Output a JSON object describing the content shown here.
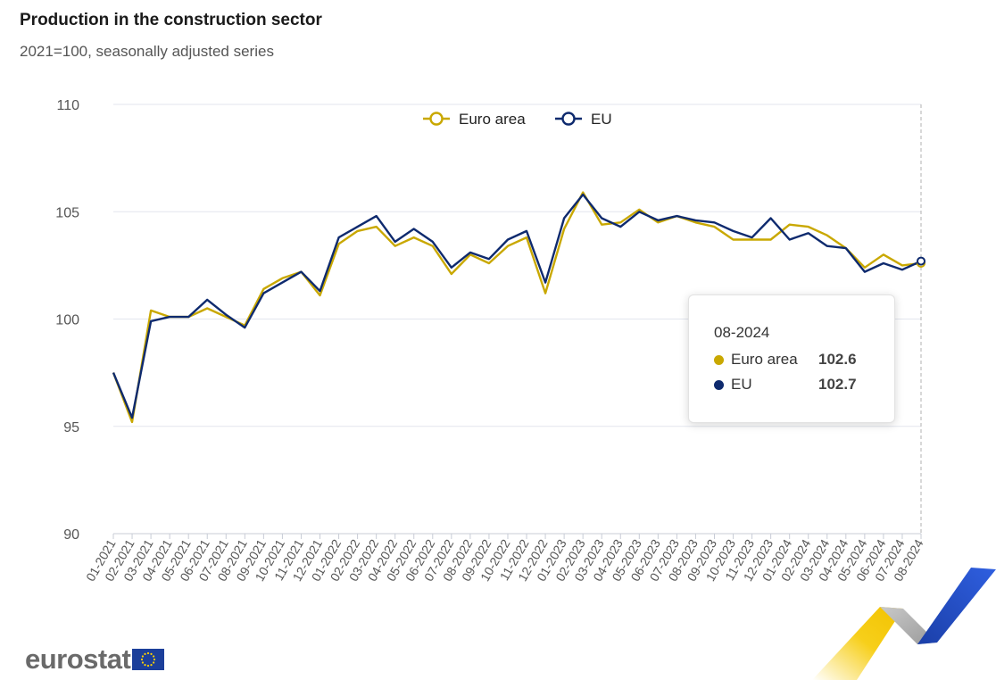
{
  "title": "Production in the construction sector",
  "subtitle": "2021=100, seasonally adjusted series",
  "colors": {
    "euro_area": "#c9a800",
    "eu": "#0e2a6e",
    "grid": "#e3e6ee"
  },
  "chart_data": {
    "type": "line",
    "title": "Production in the construction sector",
    "subtitle": "2021=100, seasonally adjusted series",
    "ylim": [
      90,
      110
    ],
    "yticks": [
      90,
      95,
      100,
      105,
      110
    ],
    "grid": true,
    "legend_position": "top-center",
    "x": [
      "01-2021",
      "02-2021",
      "03-2021",
      "04-2021",
      "05-2021",
      "06-2021",
      "07-2021",
      "08-2021",
      "09-2021",
      "10-2021",
      "11-2021",
      "12-2021",
      "01-2022",
      "02-2022",
      "03-2022",
      "04-2022",
      "05-2022",
      "06-2022",
      "07-2022",
      "08-2022",
      "09-2022",
      "10-2022",
      "11-2022",
      "12-2022",
      "01-2023",
      "02-2023",
      "03-2023",
      "04-2023",
      "05-2023",
      "06-2023",
      "07-2023",
      "08-2023",
      "09-2023",
      "10-2023",
      "11-2023",
      "12-2023",
      "01-2024",
      "02-2024",
      "03-2024",
      "04-2024",
      "05-2024",
      "06-2024",
      "07-2024",
      "08-2024"
    ],
    "series": [
      {
        "name": "Euro area",
        "values": [
          97.5,
          95.2,
          100.4,
          100.1,
          100.1,
          100.5,
          100.1,
          99.7,
          101.4,
          101.9,
          102.2,
          101.1,
          103.5,
          104.1,
          104.3,
          103.4,
          103.8,
          103.4,
          102.1,
          103.0,
          102.6,
          103.4,
          103.8,
          101.2,
          104.2,
          105.9,
          104.4,
          104.5,
          105.1,
          104.5,
          104.8,
          104.5,
          104.3,
          103.7,
          103.7,
          103.7,
          104.4,
          104.3,
          103.9,
          103.3,
          102.4,
          103.0,
          102.5,
          102.6
        ]
      },
      {
        "name": "EU",
        "values": [
          97.5,
          95.4,
          99.9,
          100.1,
          100.1,
          100.9,
          100.2,
          99.6,
          101.2,
          101.7,
          102.2,
          101.3,
          103.8,
          104.3,
          104.8,
          103.6,
          104.2,
          103.6,
          102.4,
          103.1,
          102.8,
          103.7,
          104.1,
          101.7,
          104.7,
          105.8,
          104.7,
          104.3,
          105.0,
          104.6,
          104.8,
          104.6,
          104.5,
          104.1,
          103.8,
          104.7,
          103.7,
          104.0,
          103.4,
          103.3,
          102.2,
          102.6,
          102.3,
          102.7
        ]
      }
    ]
  },
  "tooltip": {
    "date": "08-2024",
    "rows": [
      {
        "name": "Euro area",
        "value": "102.6"
      },
      {
        "name": "EU",
        "value": "102.7"
      }
    ]
  },
  "logo": {
    "text": "eurostat"
  }
}
